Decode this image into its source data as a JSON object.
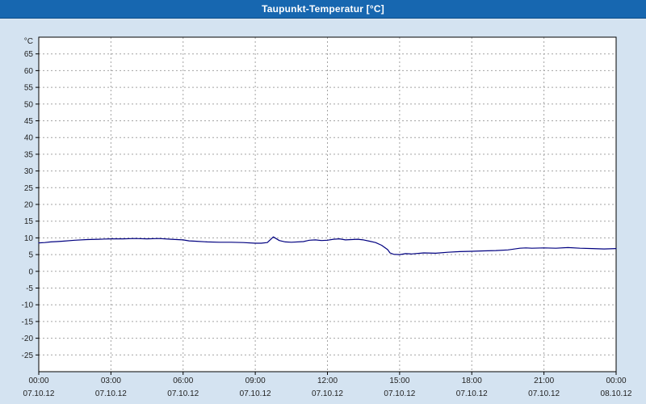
{
  "window": {
    "title": "Taupunkt-Temperatur [°C]"
  },
  "chart_data": {
    "type": "line",
    "title": "Taupunkt-Temperatur [°C]",
    "xlabel": "",
    "ylabel": "°C",
    "xlim": [
      0,
      24
    ],
    "ylim": [
      -30,
      70
    ],
    "yticks": [
      -25,
      -20,
      -15,
      -10,
      -5,
      0,
      5,
      10,
      15,
      20,
      25,
      30,
      35,
      40,
      45,
      50,
      55,
      60,
      65
    ],
    "grid": true,
    "legend": "none",
    "line_color": "#000080",
    "grid_color": "#a3a3a3",
    "plot_bg": "#ffffff",
    "xticks": [
      {
        "hour": 0,
        "time": "00:00",
        "date": "07.10.12"
      },
      {
        "hour": 3,
        "time": "03:00",
        "date": "07.10.12"
      },
      {
        "hour": 6,
        "time": "06:00",
        "date": "07.10.12"
      },
      {
        "hour": 9,
        "time": "09:00",
        "date": "07.10.12"
      },
      {
        "hour": 12,
        "time": "12:00",
        "date": "07.10.12"
      },
      {
        "hour": 15,
        "time": "15:00",
        "date": "07.10.12"
      },
      {
        "hour": 18,
        "time": "18:00",
        "date": "07.10.12"
      },
      {
        "hour": 21,
        "time": "21:00",
        "date": "07.10.12"
      },
      {
        "hour": 24,
        "time": "00:00",
        "date": "08.10.12"
      }
    ],
    "series": [
      {
        "name": "Taupunkt-Temperatur",
        "x": [
          0,
          0.25,
          0.5,
          0.75,
          1,
          1.5,
          2,
          2.5,
          3,
          3.5,
          4,
          4.5,
          5,
          5.5,
          6,
          6.25,
          6.5,
          7,
          7.5,
          8,
          8.5,
          9,
          9.25,
          9.5,
          9.75,
          10,
          10.25,
          10.5,
          11,
          11.25,
          11.5,
          11.75,
          12,
          12.25,
          12.5,
          12.75,
          13,
          13.25,
          13.5,
          13.75,
          14,
          14.25,
          14.5,
          14.6,
          14.75,
          15,
          15.25,
          15.5,
          16,
          16.5,
          17,
          17.5,
          18,
          18.5,
          19,
          19.5,
          20,
          20.25,
          20.5,
          21,
          21.5,
          22,
          22.5,
          23,
          23.5,
          24
        ],
        "values": [
          8.5,
          8.6,
          8.8,
          8.9,
          9.0,
          9.3,
          9.5,
          9.6,
          9.7,
          9.7,
          9.8,
          9.7,
          9.8,
          9.6,
          9.4,
          9.1,
          9.0,
          8.8,
          8.7,
          8.7,
          8.6,
          8.4,
          8.4,
          8.6,
          10.3,
          9.2,
          8.8,
          8.7,
          8.9,
          9.3,
          9.4,
          9.2,
          9.3,
          9.6,
          9.7,
          9.4,
          9.5,
          9.6,
          9.4,
          9.0,
          8.6,
          7.8,
          6.5,
          5.5,
          5.1,
          5.0,
          5.3,
          5.2,
          5.5,
          5.4,
          5.7,
          5.9,
          6.0,
          6.1,
          6.2,
          6.4,
          6.9,
          7.0,
          6.9,
          7.0,
          6.9,
          7.1,
          6.9,
          6.8,
          6.7,
          6.8
        ]
      }
    ]
  }
}
